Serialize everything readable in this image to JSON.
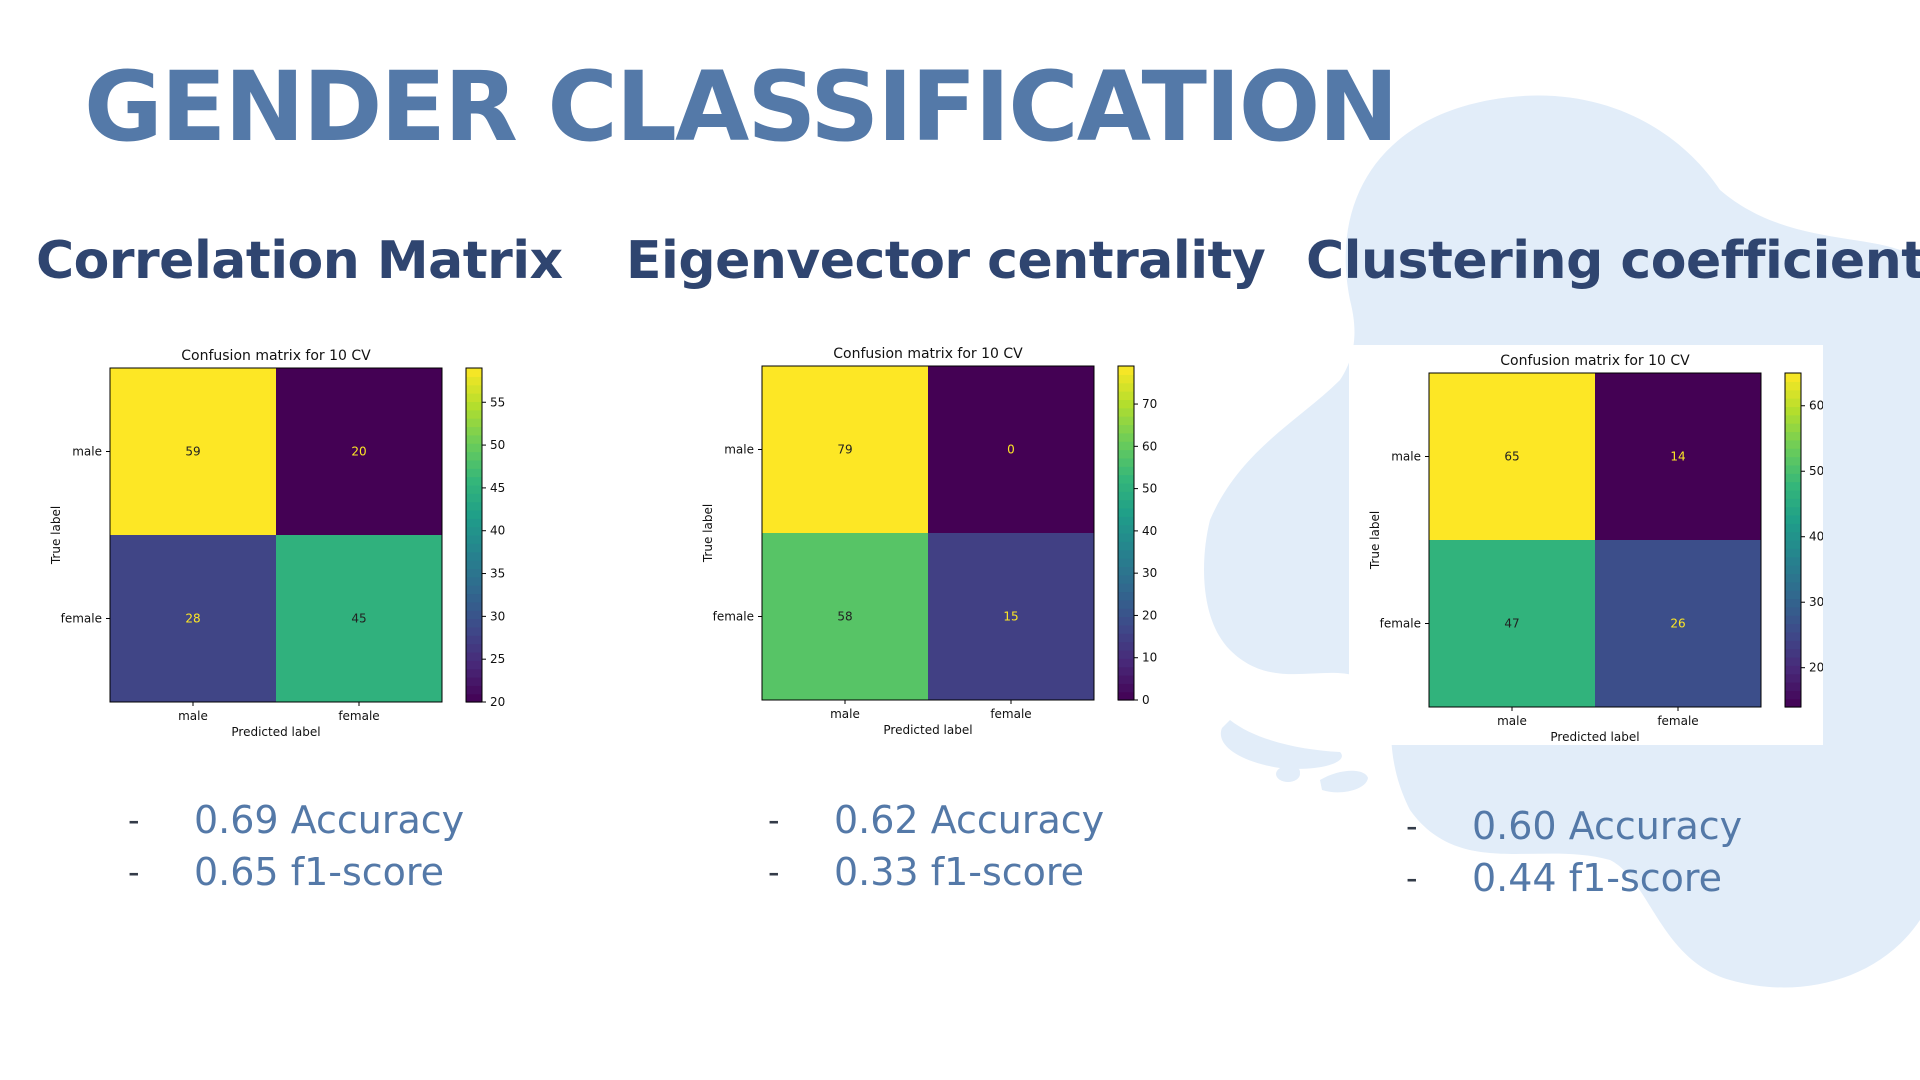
{
  "slide": {
    "title": "GENDER CLASSIFICATION",
    "colors": {
      "title": "#5479a8",
      "heading": "#2f4570",
      "metric_text": "#5479a8",
      "blob": "#e2edf9"
    }
  },
  "columns": [
    {
      "heading": "Correlation Matrix",
      "metrics": [
        {
          "bullet": "-",
          "text": "0.69 Accuracy"
        },
        {
          "bullet": "-",
          "text": "0.65 f1-score"
        }
      ]
    },
    {
      "heading": "Eigenvector centrality",
      "metrics": [
        {
          "bullet": "-",
          "text": "0.62 Accuracy"
        },
        {
          "bullet": "-",
          "text": "0.33 f1-score"
        }
      ]
    },
    {
      "heading": "Clustering coefficient",
      "metrics": [
        {
          "bullet": "-",
          "text": "0.60 Accuracy"
        },
        {
          "bullet": "-",
          "text": "0.44 f1-score"
        }
      ]
    }
  ],
  "chart_data": [
    {
      "type": "heatmap",
      "title": "Confusion matrix for 10 CV",
      "xlabel": "Predicted label",
      "ylabel": "True label",
      "x_categories": [
        "male",
        "female"
      ],
      "y_categories": [
        "male",
        "female"
      ],
      "values": [
        [
          59,
          20
        ],
        [
          28,
          45
        ]
      ],
      "colorbar": {
        "colormap": "viridis",
        "range": [
          20,
          59
        ],
        "ticks": [
          20,
          25,
          30,
          35,
          40,
          45,
          50,
          55
        ]
      }
    },
    {
      "type": "heatmap",
      "title": "Confusion matrix for 10 CV",
      "xlabel": "Predicted label",
      "ylabel": "True label",
      "x_categories": [
        "male",
        "female"
      ],
      "y_categories": [
        "male",
        "female"
      ],
      "values": [
        [
          79,
          0
        ],
        [
          58,
          15
        ]
      ],
      "colorbar": {
        "colormap": "viridis",
        "range": [
          0,
          79
        ],
        "ticks": [
          0,
          10,
          20,
          30,
          40,
          50,
          60,
          70
        ]
      }
    },
    {
      "type": "heatmap",
      "title": "Confusion matrix for 10 CV",
      "xlabel": "Predicted label",
      "ylabel": "True label",
      "x_categories": [
        "male",
        "female"
      ],
      "y_categories": [
        "male",
        "female"
      ],
      "values": [
        [
          65,
          14
        ],
        [
          47,
          26
        ]
      ],
      "colorbar": {
        "colormap": "viridis",
        "range": [
          14,
          65
        ],
        "ticks": [
          20,
          30,
          40,
          50,
          60
        ]
      }
    }
  ]
}
